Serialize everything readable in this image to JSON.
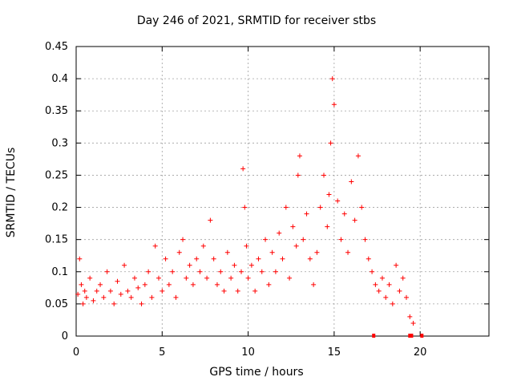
{
  "chart_data": {
    "type": "scatter",
    "title": "Day 246 of 2021, SRMTID for receiver stbs",
    "xlabel": "GPS time / hours",
    "ylabel": "SRMTID / TECUs",
    "xlim": [
      0,
      24
    ],
    "ylim": [
      0,
      0.45
    ],
    "xticks": [
      "0",
      "5",
      "10",
      "15",
      "20"
    ],
    "yticks": [
      "0",
      "0.05",
      "0.1",
      "0.15",
      "0.2",
      "0.25",
      "0.3",
      "0.35",
      "0.4",
      "0.45"
    ],
    "grid": true,
    "marker": "+",
    "color": "#ff0000",
    "series": [
      {
        "name": "SRMTID",
        "x": [
          0.1,
          0.2,
          0.3,
          0.4,
          0.5,
          0.6,
          0.8,
          1.0,
          1.2,
          1.4,
          1.6,
          1.8,
          2.0,
          2.2,
          2.4,
          2.6,
          2.8,
          3.0,
          3.2,
          3.4,
          3.6,
          3.8,
          4.0,
          4.2,
          4.4,
          4.6,
          4.8,
          5.0,
          5.2,
          5.4,
          5.6,
          5.8,
          6.0,
          6.2,
          6.4,
          6.6,
          6.8,
          7.0,
          7.2,
          7.4,
          7.6,
          7.8,
          8.0,
          8.2,
          8.4,
          8.6,
          8.8,
          9.0,
          9.2,
          9.4,
          9.6,
          9.7,
          9.8,
          9.9,
          10.0,
          10.2,
          10.4,
          10.6,
          10.8,
          11.0,
          11.2,
          11.4,
          11.6,
          11.8,
          12.0,
          12.2,
          12.4,
          12.6,
          12.8,
          12.9,
          13.0,
          13.2,
          13.4,
          13.6,
          13.8,
          14.0,
          14.2,
          14.4,
          14.6,
          14.7,
          14.8,
          14.9,
          15.0,
          15.2,
          15.4,
          15.6,
          15.8,
          16.0,
          16.2,
          16.4,
          16.6,
          16.8,
          17.0,
          17.2,
          17.4,
          17.6,
          17.8,
          18.0,
          18.2,
          18.4,
          18.6,
          18.8,
          19.0,
          19.2,
          19.4,
          19.6
        ],
        "y": [
          0.065,
          0.12,
          0.08,
          0.05,
          0.07,
          0.06,
          0.09,
          0.055,
          0.07,
          0.08,
          0.06,
          0.1,
          0.07,
          0.05,
          0.085,
          0.065,
          0.11,
          0.07,
          0.06,
          0.09,
          0.075,
          0.05,
          0.08,
          0.1,
          0.06,
          0.14,
          0.09,
          0.07,
          0.12,
          0.08,
          0.1,
          0.06,
          0.13,
          0.15,
          0.09,
          0.11,
          0.08,
          0.12,
          0.1,
          0.14,
          0.09,
          0.18,
          0.12,
          0.08,
          0.1,
          0.07,
          0.13,
          0.09,
          0.11,
          0.07,
          0.1,
          0.26,
          0.2,
          0.14,
          0.09,
          0.11,
          0.07,
          0.12,
          0.1,
          0.15,
          0.08,
          0.13,
          0.1,
          0.16,
          0.12,
          0.2,
          0.09,
          0.17,
          0.14,
          0.25,
          0.28,
          0.15,
          0.19,
          0.12,
          0.08,
          0.13,
          0.2,
          0.25,
          0.17,
          0.22,
          0.3,
          0.4,
          0.36,
          0.21,
          0.15,
          0.19,
          0.13,
          0.24,
          0.18,
          0.28,
          0.2,
          0.15,
          0.12,
          0.1,
          0.08,
          0.07,
          0.09,
          0.06,
          0.08,
          0.05,
          0.11,
          0.07,
          0.09,
          0.06,
          0.03,
          0.02
        ]
      }
    ],
    "axis_markers_x": [
      17.3,
      19.4,
      19.5,
      20.1
    ]
  }
}
